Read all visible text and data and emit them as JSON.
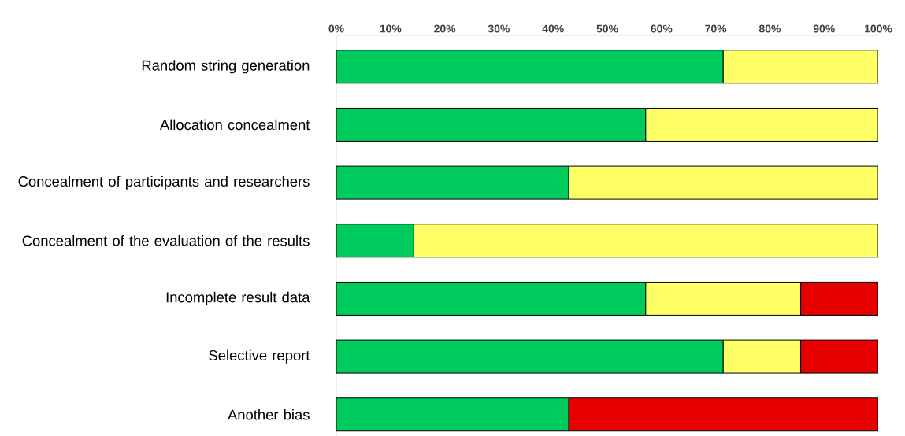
{
  "chart_data": {
    "type": "bar",
    "orientation": "horizontal",
    "stacked": true,
    "categories": [
      "Random string generation",
      "Allocation concealment",
      "Concealment of participants and researchers",
      "Concealment of the evaluation of the results",
      "Incomplete result data",
      "Selective report",
      "Another bias"
    ],
    "series": [
      {
        "color": "#00cc5e",
        "values": [
          71.4,
          57.1,
          42.9,
          14.3,
          57.1,
          71.4,
          42.9
        ]
      },
      {
        "color": "#ffff66",
        "values": [
          28.6,
          42.9,
          57.1,
          85.7,
          28.6,
          14.3,
          null
        ]
      },
      {
        "color": "#e60000",
        "values": [
          null,
          null,
          null,
          null,
          14.3,
          14.3,
          57.1
        ]
      }
    ],
    "xlim": [
      0,
      100
    ],
    "xticks": [
      {
        "value": 0,
        "label": "0%"
      },
      {
        "value": 10,
        "label": "10%"
      },
      {
        "value": 20,
        "label": "20%"
      },
      {
        "value": 30,
        "label": "30%"
      },
      {
        "value": 40,
        "label": "40%"
      },
      {
        "value": 50,
        "label": "50%"
      },
      {
        "value": 60,
        "label": "60%"
      },
      {
        "value": 70,
        "label": "70%"
      },
      {
        "value": 80,
        "label": "80%"
      },
      {
        "value": 90,
        "label": "90%"
      },
      {
        "value": 100,
        "label": "100%"
      }
    ],
    "grid": false,
    "legend": false
  }
}
